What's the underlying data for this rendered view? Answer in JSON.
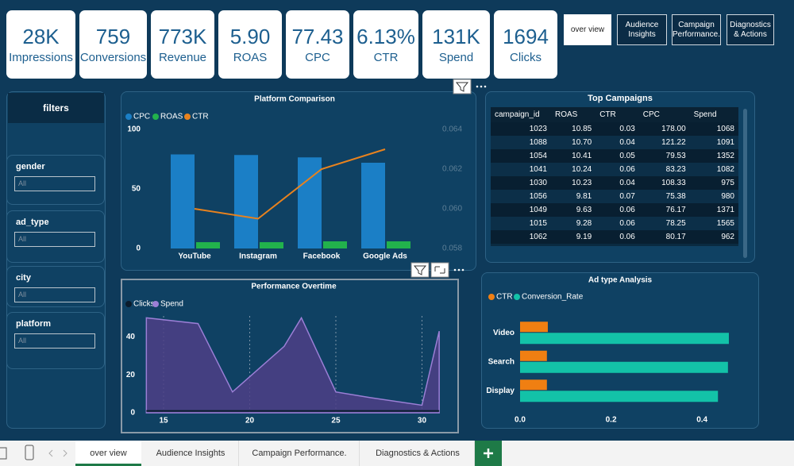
{
  "kpis": [
    {
      "value": "28K",
      "label": "Impressions"
    },
    {
      "value": "759",
      "label": "Conversions"
    },
    {
      "value": "773K",
      "label": "Revenue"
    },
    {
      "value": "5.90",
      "label": "ROAS"
    },
    {
      "value": "77.43",
      "label": "CPC"
    },
    {
      "value": "6.13%",
      "label": "CTR"
    },
    {
      "value": "131K",
      "label": "Spend"
    },
    {
      "value": "1694",
      "label": "Clicks"
    }
  ],
  "nav_buttons": [
    "over view",
    "Audience Insights",
    "Campaign Performance.",
    "Diagnostics & Actions"
  ],
  "filters": {
    "title": "filters",
    "slicers": [
      {
        "label": "gender",
        "value": "All"
      },
      {
        "label": "ad_type",
        "value": "All"
      },
      {
        "label": "city",
        "value": "All"
      },
      {
        "label": "platform",
        "value": "All"
      }
    ]
  },
  "top_campaigns": {
    "title": "Top Campaigns",
    "columns": [
      "campaign_id",
      "ROAS",
      "CTR",
      "CPC",
      "Spend"
    ],
    "rows": [
      [
        "1023",
        "10.85",
        "0.03",
        "178.00",
        "1068"
      ],
      [
        "1088",
        "10.70",
        "0.04",
        "121.22",
        "1091"
      ],
      [
        "1054",
        "10.41",
        "0.05",
        "79.53",
        "1352"
      ],
      [
        "1041",
        "10.24",
        "0.06",
        "83.23",
        "1082"
      ],
      [
        "1030",
        "10.23",
        "0.04",
        "108.33",
        "975"
      ],
      [
        "1056",
        "9.81",
        "0.07",
        "75.38",
        "980"
      ],
      [
        "1049",
        "9.63",
        "0.06",
        "76.17",
        "1371"
      ],
      [
        "1015",
        "9.28",
        "0.06",
        "78.25",
        "1565"
      ],
      [
        "1062",
        "9.19",
        "0.06",
        "80.17",
        "962"
      ]
    ]
  },
  "chart_data": [
    {
      "type": "combo",
      "title": "Platform Comparison",
      "categories": [
        "YouTube",
        "Instagram",
        "Facebook",
        "Google Ads"
      ],
      "series": [
        {
          "name": "CPC",
          "color": "#1b7fc6",
          "mark": "bar",
          "values": [
            79,
            78.5,
            76.5,
            72
          ]
        },
        {
          "name": "ROAS",
          "color": "#22b24c",
          "mark": "bar",
          "values": [
            5.3,
            5.3,
            6,
            6
          ]
        },
        {
          "name": "CTR",
          "color": "#e8821e",
          "mark": "line",
          "axis": "y2",
          "values": [
            0.06,
            0.0595,
            0.062,
            0.063
          ]
        }
      ],
      "ylim": [
        0,
        100
      ],
      "yticks": [
        0,
        50,
        100
      ],
      "y2lim": [
        0.058,
        0.064
      ],
      "y2ticks": [
        0.058,
        {
          "value": 0.06,
          "label": "0.060"
        },
        0.062,
        0.064
      ]
    },
    {
      "type": "area",
      "title": "Performance Overtime",
      "x": [
        14,
        17,
        19,
        22,
        23,
        25,
        27,
        30,
        31
      ],
      "series": [
        {
          "name": "Clicks",
          "color": "#0b1c2c",
          "mark": "line",
          "values": [
            1,
            1,
            1,
            1,
            1,
            1,
            1,
            1,
            1
          ]
        },
        {
          "name": "Spend",
          "color": "#9b7fd6",
          "mark": "area",
          "values": [
            50,
            47,
            11,
            35,
            50,
            11,
            8,
            4,
            43
          ]
        }
      ],
      "xlim": [
        13.5,
        31.5
      ],
      "xticks": [
        15,
        20,
        25,
        30
      ],
      "xgrid": true,
      "ylim": [
        0,
        51
      ],
      "yticks": [
        0,
        20,
        40
      ]
    },
    {
      "type": "barh",
      "title": "Ad type Analysis",
      "categories": [
        "Video",
        "Search",
        "Display"
      ],
      "series": [
        {
          "name": "CTR",
          "color": "#f07f12",
          "values": [
            0.061,
            0.059,
            0.059
          ]
        },
        {
          "name": "Conversion_Rate",
          "color": "#13c2a8",
          "values": [
            0.459,
            0.457,
            0.435
          ]
        }
      ],
      "xlim": [
        0,
        0.48
      ],
      "xticks": [
        {
          "value": 0,
          "label": "0.0"
        },
        0.2,
        0.4
      ]
    }
  ],
  "tabs": [
    "over view",
    "Audience Insights",
    "Campaign Performance.",
    "Diagnostics & Actions"
  ]
}
